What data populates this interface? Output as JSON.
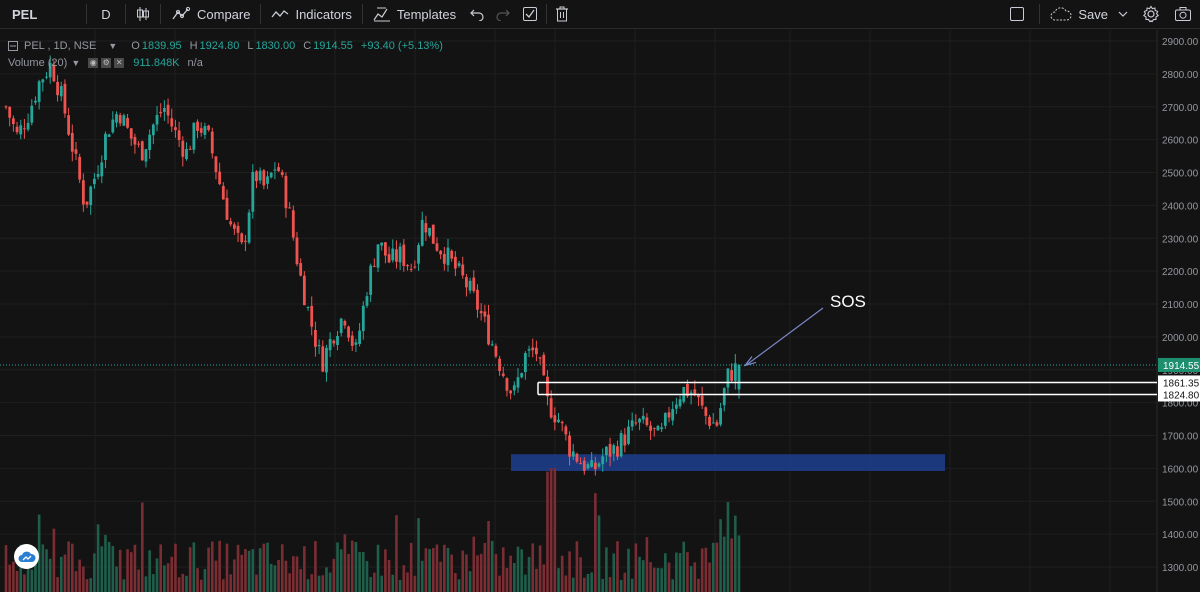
{
  "toolbar": {
    "symbol": "PEL",
    "resolution": "D",
    "compare_label": "Compare",
    "indicators_label": "Indicators",
    "templates_label": "Templates",
    "save_label": "Save"
  },
  "legend": {
    "symbol_text": "PEL , 1D, NSE",
    "open_key": "O",
    "open": "1839.95",
    "high_key": "H",
    "high": "1924.80",
    "low_key": "L",
    "low": "1830.00",
    "close_key": "C",
    "close": "1914.55",
    "change": "+93.40 (+5.13%)"
  },
  "volume_legend": {
    "label": "Volume (20)",
    "value": "911.848K",
    "ma_value": "n/a"
  },
  "annotation_text": "SOS",
  "colors": {
    "up": "#26a69a",
    "down": "#ef5350",
    "zone": "#1f3f8f",
    "price_tag": "#1e8f6e"
  },
  "chart_data": {
    "type": "candlestick",
    "ylim": [
      1270,
      2940
    ],
    "yticks": [
      1300,
      1400,
      1500,
      1600,
      1700,
      1800,
      1900,
      2000,
      2100,
      2200,
      2300,
      2400,
      2500,
      2600,
      2700,
      2800,
      2900
    ],
    "ytick_labels": [
      "1300.00",
      "1400.00",
      "1500.00",
      "1600.00",
      "1700.00",
      "1800.00",
      "1900.00",
      "2000.00",
      "2100.00",
      "2200.00",
      "2300.00",
      "2400.00",
      "2500.00",
      "2600.00",
      "2700.00",
      "2800.00",
      "2900.00"
    ],
    "price_path": [
      2700,
      2610,
      2680,
      2780,
      2830,
      2720,
      2560,
      2400,
      2500,
      2630,
      2690,
      2610,
      2560,
      2640,
      2700,
      2620,
      2560,
      2650,
      2600,
      2460,
      2330,
      2260,
      2500,
      2450,
      2530,
      2400,
      2200,
      2050,
      1920,
      2010,
      2070,
      1950,
      2150,
      2290,
      2230,
      2250,
      2210,
      2360,
      2290,
      2250,
      2200,
      2150,
      2080,
      1990,
      1900,
      1820,
      1940,
      1960,
      1800,
      1750,
      1660,
      1620,
      1590,
      1640,
      1660,
      1700,
      1740,
      1720,
      1690,
      1790,
      1840,
      1830,
      1760,
      1730,
      1880,
      1914
    ],
    "last_price_label": "1914.55",
    "levels": [
      {
        "value": 1861.35,
        "label": "1861.35"
      },
      {
        "value": 1824.8,
        "label": "1824.80"
      }
    ],
    "zone": {
      "low": 1592,
      "high": 1643
    },
    "annotation": "SOS"
  }
}
